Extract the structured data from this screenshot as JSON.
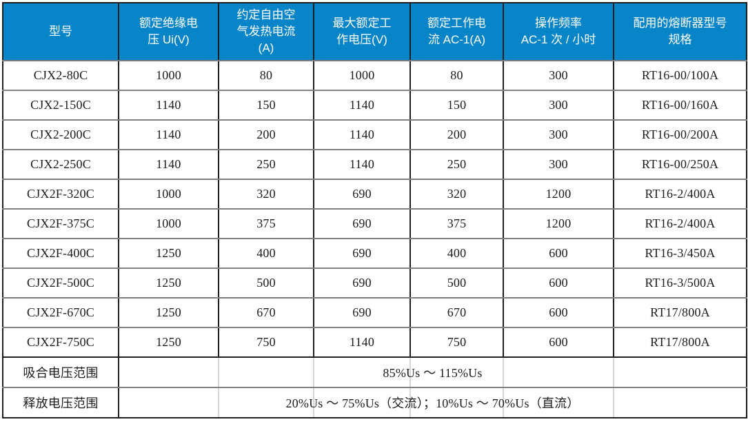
{
  "table": {
    "columns": [
      {
        "label": "型号"
      },
      {
        "label": "额定绝缘电\n压 Ui(V)"
      },
      {
        "label": "约定自由空\n气发热电流\n(A)"
      },
      {
        "label": "最大额定工\n作电压(V)"
      },
      {
        "label": "额定工作电\n流 AC-1(A)"
      },
      {
        "label": "操作频率\nAC-1 次 / 小时"
      },
      {
        "label": "配用的熔断器型号\n规格"
      }
    ],
    "rows": [
      [
        "CJX2-80C",
        "1000",
        "80",
        "1000",
        "80",
        "300",
        "RT16-00/100A"
      ],
      [
        "CJX2-150C",
        "1140",
        "150",
        "1140",
        "150",
        "300",
        "RT16-00/160A"
      ],
      [
        "CJX2-200C",
        "1140",
        "200",
        "1140",
        "200",
        "300",
        "RT16-00/200A"
      ],
      [
        "CJX2-250C",
        "1140",
        "250",
        "1140",
        "250",
        "300",
        "RT16-00/250A"
      ],
      [
        "CJX2F-320C",
        "1000",
        "320",
        "690",
        "320",
        "1200",
        "RT16-2/400A"
      ],
      [
        "CJX2F-375C",
        "1000",
        "375",
        "690",
        "375",
        "1200",
        "RT16-2/400A"
      ],
      [
        "CJX2F-400C",
        "1250",
        "400",
        "690",
        "400",
        "600",
        "RT16-3/450A"
      ],
      [
        "CJX2F-500C",
        "1250",
        "500",
        "690",
        "500",
        "600",
        "RT16-3/500A"
      ],
      [
        "CJX2F-670C",
        "1250",
        "670",
        "690",
        "670",
        "600",
        "RT17/800A"
      ],
      [
        "CJX2F-750C",
        "1250",
        "750",
        "1140",
        "750",
        "600",
        "RT17/800A"
      ]
    ],
    "footer_rows": [
      {
        "label": "吸合电压范围",
        "value": "85%Us ～ 115%Us"
      },
      {
        "label": "释放电压范围",
        "value": "20%Us ～ 75%Us（交流）；10%Us ～ 70%Us（直流）"
      }
    ]
  },
  "colors": {
    "header_bg": "#0884C8",
    "header_text": "#FFFFFF",
    "grid_vertical": "#1E1E1E",
    "grid_horizontal": "#7F7F7F",
    "faint_divider": "#D6D6D6",
    "body_text": "#1C1C1C",
    "body_bg": "#FFFFFF"
  }
}
